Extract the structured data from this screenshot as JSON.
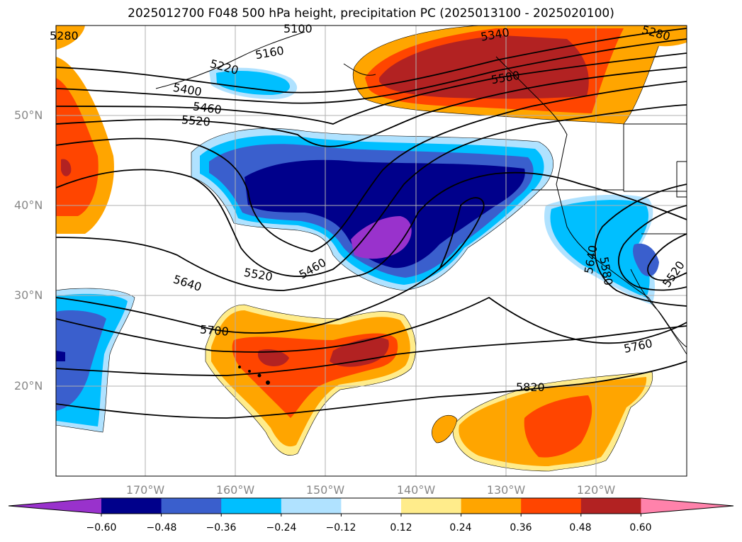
{
  "title": "2025012700 F048 500 hPa height, precipitation PC (2025013100 - 2025020100)",
  "lat_labels": [
    "50°N",
    "40°N",
    "30°N",
    "20°N"
  ],
  "lon_labels": [
    "170°W",
    "160°W",
    "150°W",
    "140°W",
    "130°W",
    "120°W"
  ],
  "contour_labels": [
    "5280",
    "5340",
    "5280",
    "5160",
    "5100",
    "5220",
    "5400",
    "5460",
    "5520",
    "5580",
    "5460",
    "5520",
    "5640",
    "5580",
    "5520",
    "5640",
    "5700",
    "5760",
    "5820"
  ],
  "colorbar": {
    "tick_labels": [
      "−0.60",
      "−0.48",
      "−0.36",
      "−0.24",
      "−0.12",
      "0.12",
      "0.24",
      "0.36",
      "0.48",
      "0.60"
    ],
    "colors": [
      "#9932cc",
      "#00008b",
      "#3a5fcd",
      "#00bfff",
      "#b0e2ff",
      "#ffffff",
      "#ffec8b",
      "#ffa500",
      "#ff4500",
      "#b22222",
      "#ff82ab"
    ]
  },
  "palette": {
    "neg_06": "#9932cc",
    "neg_048": "#00008b",
    "neg_036": "#3a5fcd",
    "neg_024": "#00bfff",
    "neg_012": "#b0e2ff",
    "pos_012": "#ffec8b",
    "pos_024": "#ffa500",
    "pos_036": "#ff4500",
    "pos_048": "#b22222"
  }
}
